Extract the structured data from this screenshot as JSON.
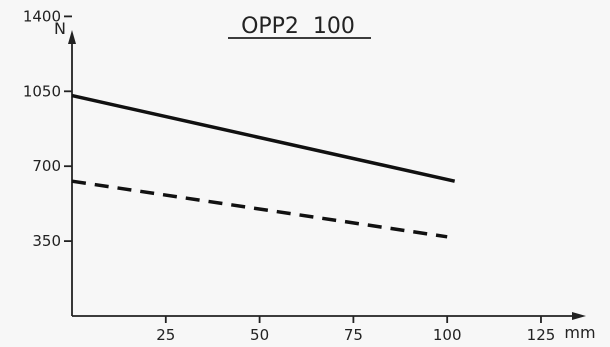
{
  "chart_data": {
    "type": "line",
    "title": "OPP2  100",
    "xlabel": "mm",
    "ylabel": "N",
    "xlim": [
      0,
      137
    ],
    "ylim": [
      0,
      1500
    ],
    "x_ticks": [
      25,
      50,
      75,
      100,
      125
    ],
    "y_ticks": [
      350,
      700,
      1050,
      1400
    ],
    "grid": false,
    "series": [
      {
        "style": "solid",
        "color": "#111111",
        "x": [
          0,
          102
        ],
        "y": [
          1030,
          630
        ]
      },
      {
        "style": "dashed",
        "color": "#111111",
        "x": [
          0,
          100
        ],
        "y": [
          630,
          370
        ]
      }
    ]
  }
}
